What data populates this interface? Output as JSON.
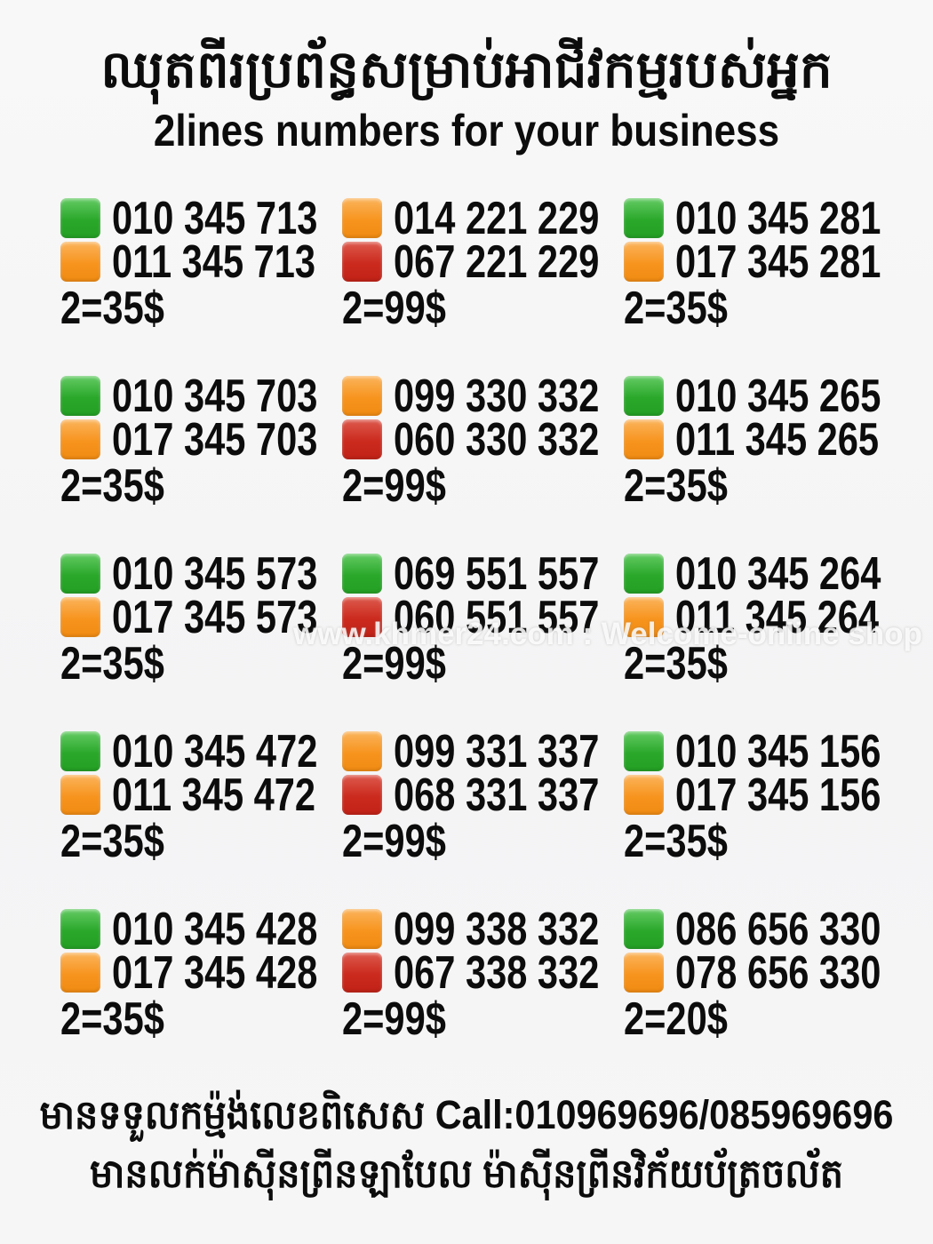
{
  "header": {
    "title_khmer": "ឈុតពីរប្រព័ន្ធសម្រាប់អាជីវកម្មរបស់អ្នក",
    "subtitle": "2lines numbers for your business"
  },
  "colors": {
    "green": "#2aa82a",
    "orange": "#f7941e",
    "red": "#cb2a1d"
  },
  "cards": [
    {
      "line1_color": "green",
      "line1_number": "010 345 713",
      "line2_color": "orange",
      "line2_number": "011 345 713",
      "price": "2=35$"
    },
    {
      "line1_color": "orange",
      "line1_number": "014 221 229",
      "line2_color": "red",
      "line2_number": "067 221 229",
      "price": "2=99$"
    },
    {
      "line1_color": "green",
      "line1_number": "010 345 281",
      "line2_color": "orange",
      "line2_number": "017 345 281",
      "price": "2=35$"
    },
    {
      "line1_color": "green",
      "line1_number": "010 345 703",
      "line2_color": "orange",
      "line2_number": "017 345 703",
      "price": "2=35$"
    },
    {
      "line1_color": "orange",
      "line1_number": "099 330 332",
      "line2_color": "red",
      "line2_number": "060 330 332",
      "price": "2=99$"
    },
    {
      "line1_color": "green",
      "line1_number": "010 345 265",
      "line2_color": "orange",
      "line2_number": "011 345 265",
      "price": "2=35$"
    },
    {
      "line1_color": "green",
      "line1_number": "010 345 573",
      "line2_color": "orange",
      "line2_number": "017 345 573",
      "price": "2=35$"
    },
    {
      "line1_color": "green",
      "line1_number": "069 551 557",
      "line2_color": "red",
      "line2_number": "060 551 557",
      "price": "2=99$"
    },
    {
      "line1_color": "green",
      "line1_number": "010 345 264",
      "line2_color": "orange",
      "line2_number": "011 345 264",
      "price": "2=35$"
    },
    {
      "line1_color": "green",
      "line1_number": "010 345 472",
      "line2_color": "orange",
      "line2_number": "011 345 472",
      "price": "2=35$"
    },
    {
      "line1_color": "orange",
      "line1_number": "099 331 337",
      "line2_color": "red",
      "line2_number": "068 331 337",
      "price": "2=99$"
    },
    {
      "line1_color": "green",
      "line1_number": "010 345 156",
      "line2_color": "orange",
      "line2_number": "017 345 156",
      "price": "2=35$"
    },
    {
      "line1_color": "green",
      "line1_number": "010 345 428",
      "line2_color": "orange",
      "line2_number": "017 345 428",
      "price": "2=35$"
    },
    {
      "line1_color": "orange",
      "line1_number": "099 338 332",
      "line2_color": "red",
      "line2_number": "067 338 332",
      "price": "2=99$"
    },
    {
      "line1_color": "green",
      "line1_number": "086 656 330",
      "line2_color": "orange",
      "line2_number": "078 656 330",
      "price": "2=20$"
    }
  ],
  "watermark": "www.khmer24.com : Welcome-online shop",
  "footer": {
    "line1": "មានទទួលកម្ម៉ង់លេខពិសេស Call:010969696/085969696",
    "line2": "មានលក់ម៉ាស៊ីនព្រីនឡាបែល ម៉ាស៊ីនព្រីនវិក័យប័ត្រចល័ត"
  }
}
